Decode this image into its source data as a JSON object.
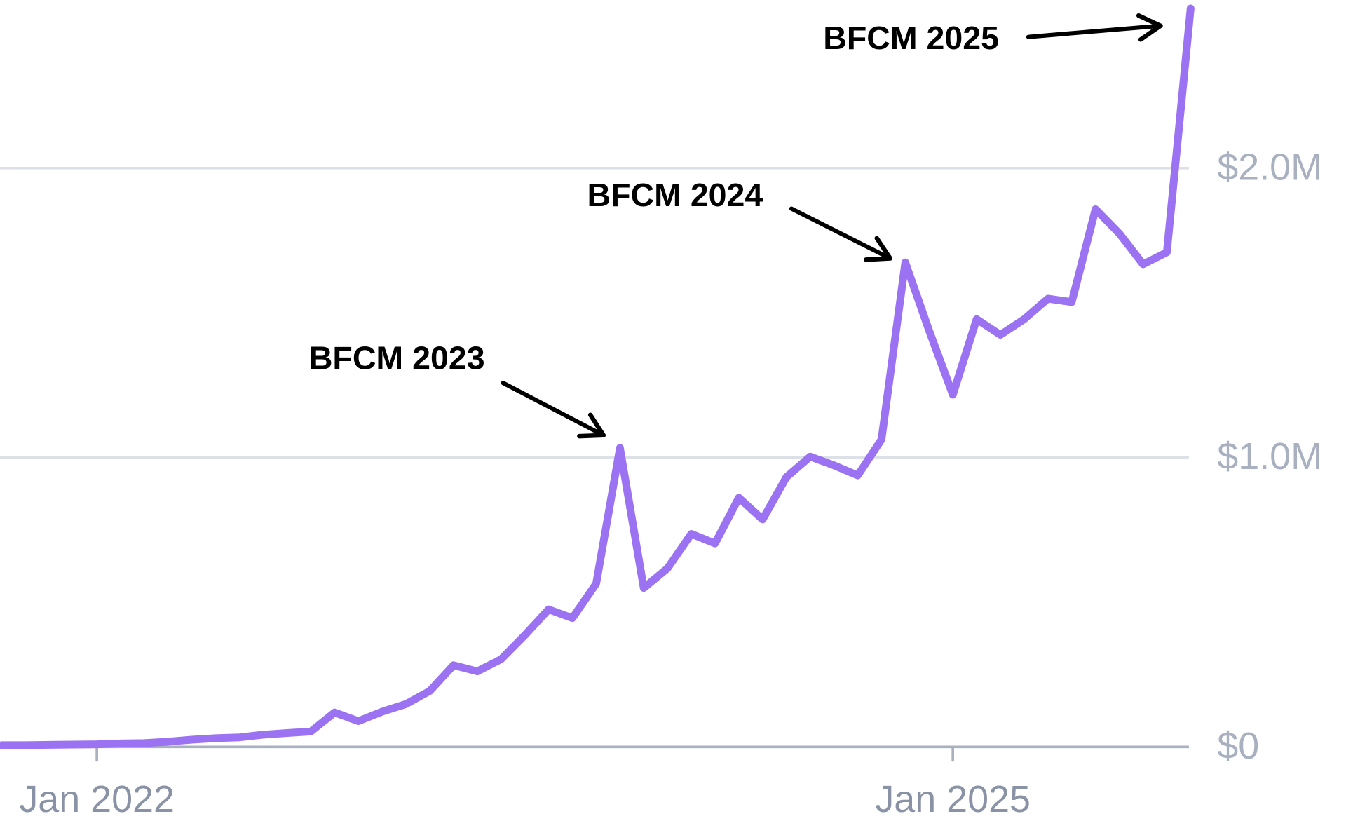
{
  "chart_data": {
    "type": "line",
    "color": "#9b72f2",
    "x": [
      "2021-09",
      "2021-10",
      "2021-11",
      "2021-12",
      "2022-01",
      "2022-02",
      "2022-03",
      "2022-04",
      "2022-05",
      "2022-06",
      "2022-07",
      "2022-08",
      "2022-09",
      "2022-10",
      "2022-11",
      "2022-12",
      "2023-01",
      "2023-02",
      "2023-03",
      "2023-04",
      "2023-05",
      "2023-06",
      "2023-07",
      "2023-08",
      "2023-09",
      "2023-10",
      "2023-11",
      "2023-12",
      "2024-01",
      "2024-02",
      "2024-03",
      "2024-04",
      "2024-05",
      "2024-06",
      "2024-07",
      "2024-08",
      "2024-09",
      "2024-10",
      "2024-11",
      "2024-12",
      "2025-01",
      "2025-02",
      "2025-03",
      "2025-04",
      "2025-05",
      "2025-06",
      "2025-07",
      "2025-08",
      "2025-09",
      "2025-10",
      "2025-11"
    ],
    "values": [
      6000,
      6000,
      7000,
      8000,
      9000,
      12000,
      13000,
      18000,
      25000,
      30000,
      33000,
      42000,
      48000,
      53000,
      119000,
      89000,
      122000,
      148000,
      193000,
      282000,
      261000,
      303000,
      386000,
      475000,
      445000,
      564000,
      1033000,
      549000,
      617000,
      736000,
      703000,
      861000,
      786000,
      932000,
      1003000,
      973000,
      938000,
      1062000,
      1674000,
      1439000,
      1217000,
      1478000,
      1424000,
      1478000,
      1549000,
      1537000,
      1858000,
      1774000,
      1668000,
      1709000,
      2552000
    ],
    "xlim": [
      "2021-09",
      "2025-11"
    ],
    "xticks": [
      {
        "value": "2022-01",
        "label": "Jan 2022"
      },
      {
        "value": "2025-01",
        "label": "Jan 2025"
      }
    ],
    "ylim": [
      0,
      2581000
    ],
    "yticks": [
      {
        "value": 0,
        "label": "$0"
      },
      {
        "value": 1000000,
        "label": "$1.0M"
      },
      {
        "value": 2000000,
        "label": "$2.0M"
      }
    ],
    "grid": true,
    "annotations": [
      "BFCM 2023",
      "BFCM 2024",
      "BFCM 2025"
    ]
  }
}
